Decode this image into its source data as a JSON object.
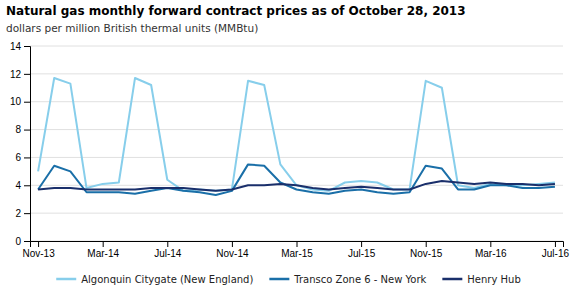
{
  "chart_data": {
    "type": "line",
    "title": "Natural gas monthly forward contract prices as of October 28, 2013",
    "subtitle": "dollars per million British thermal units (MMBtu)",
    "categories": [
      "Nov-13",
      null,
      null,
      null,
      "Mar-14",
      null,
      null,
      null,
      "Jul-14",
      null,
      null,
      null,
      "Nov-14",
      null,
      null,
      null,
      "Mar-15",
      null,
      null,
      null,
      "Jul-15",
      null,
      null,
      null,
      "Nov-15",
      null,
      null,
      null,
      "Mar-16",
      null,
      null,
      null,
      "Jul-16"
    ],
    "series": [
      {
        "name": "Algonquin Citygate (New England)",
        "color": "#87CEEB",
        "values": [
          5.0,
          11.7,
          11.3,
          3.8,
          4.1,
          4.2,
          11.7,
          11.2,
          4.4,
          3.6,
          3.7,
          3.6,
          3.7,
          11.5,
          11.2,
          5.5,
          4.0,
          3.7,
          3.6,
          4.2,
          4.3,
          4.2,
          3.7,
          3.7,
          11.5,
          11.0,
          4.0,
          3.8,
          4.1,
          4.0,
          4.0,
          4.1,
          4.2
        ]
      },
      {
        "name": "Transco Zone 6 - New York",
        "color": "#1a6fa8",
        "values": [
          3.7,
          5.4,
          5.0,
          3.5,
          3.5,
          3.5,
          3.4,
          3.6,
          3.8,
          3.6,
          3.5,
          3.3,
          3.6,
          5.5,
          5.4,
          4.2,
          3.7,
          3.5,
          3.4,
          3.6,
          3.7,
          3.5,
          3.4,
          3.5,
          5.4,
          5.2,
          3.7,
          3.7,
          4.0,
          4.0,
          3.8,
          3.8,
          3.9
        ]
      },
      {
        "name": "Henry Hub",
        "color": "#1a2f6b",
        "values": [
          3.7,
          3.8,
          3.8,
          3.7,
          3.7,
          3.7,
          3.7,
          3.8,
          3.8,
          3.8,
          3.7,
          3.6,
          3.7,
          4.0,
          4.0,
          4.1,
          4.0,
          3.8,
          3.7,
          3.8,
          3.9,
          3.8,
          3.7,
          3.7,
          4.1,
          4.3,
          4.2,
          4.1,
          4.2,
          4.1,
          4.1,
          4.0,
          4.1
        ]
      }
    ],
    "ylim": [
      0,
      14
    ],
    "yticks": [
      0,
      2,
      4,
      6,
      8,
      10,
      12,
      14
    ],
    "grid": true,
    "legend": "bottom"
  }
}
